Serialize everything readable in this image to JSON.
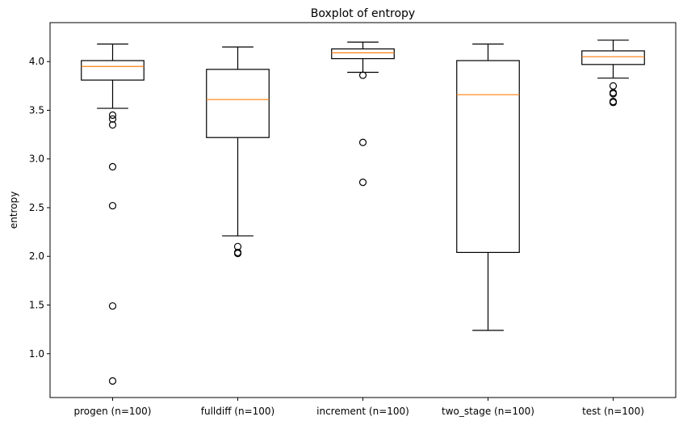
{
  "chart_data": {
    "type": "boxplot",
    "title": "Boxplot of entropy",
    "xlabel": "",
    "ylabel": "entropy",
    "ylim": [
      0.55,
      4.4
    ],
    "yticks": [
      "1.0",
      "1.5",
      "2.0",
      "2.5",
      "3.0",
      "3.5",
      "4.0"
    ],
    "grid": false,
    "colors": {
      "box": "#000000",
      "median": "#ff7f0e",
      "flier": "#000000"
    },
    "categories": [
      "progen (n=100)",
      "fulldiff (n=100)",
      "increment (n=100)",
      "two_stage (n=100)",
      "test (n=100)"
    ],
    "boxes": [
      {
        "label": "progen (n=100)",
        "whisker_low": 3.52,
        "q1": 3.81,
        "median": 3.95,
        "q3": 4.01,
        "whisker_high": 4.18,
        "fliers": [
          3.45,
          3.41,
          3.35,
          2.92,
          2.52,
          1.49,
          0.72
        ]
      },
      {
        "label": "fulldiff (n=100)",
        "whisker_low": 2.21,
        "q1": 3.22,
        "median": 3.61,
        "q3": 3.92,
        "whisker_high": 4.15,
        "fliers": [
          2.1,
          2.04,
          2.03
        ]
      },
      {
        "label": "increment (n=100)",
        "whisker_low": 3.89,
        "q1": 4.03,
        "median": 4.09,
        "q3": 4.13,
        "whisker_high": 4.2,
        "fliers": [
          3.86,
          3.17,
          2.76
        ]
      },
      {
        "label": "two_stage (n=100)",
        "whisker_low": 1.24,
        "q1": 2.04,
        "median": 3.66,
        "q3": 4.01,
        "whisker_high": 4.18,
        "fliers": []
      },
      {
        "label": "test (n=100)",
        "whisker_low": 3.83,
        "q1": 3.97,
        "median": 4.05,
        "q3": 4.11,
        "whisker_high": 4.22,
        "fliers": [
          3.75,
          3.68,
          3.67,
          3.59,
          3.58
        ]
      }
    ]
  }
}
